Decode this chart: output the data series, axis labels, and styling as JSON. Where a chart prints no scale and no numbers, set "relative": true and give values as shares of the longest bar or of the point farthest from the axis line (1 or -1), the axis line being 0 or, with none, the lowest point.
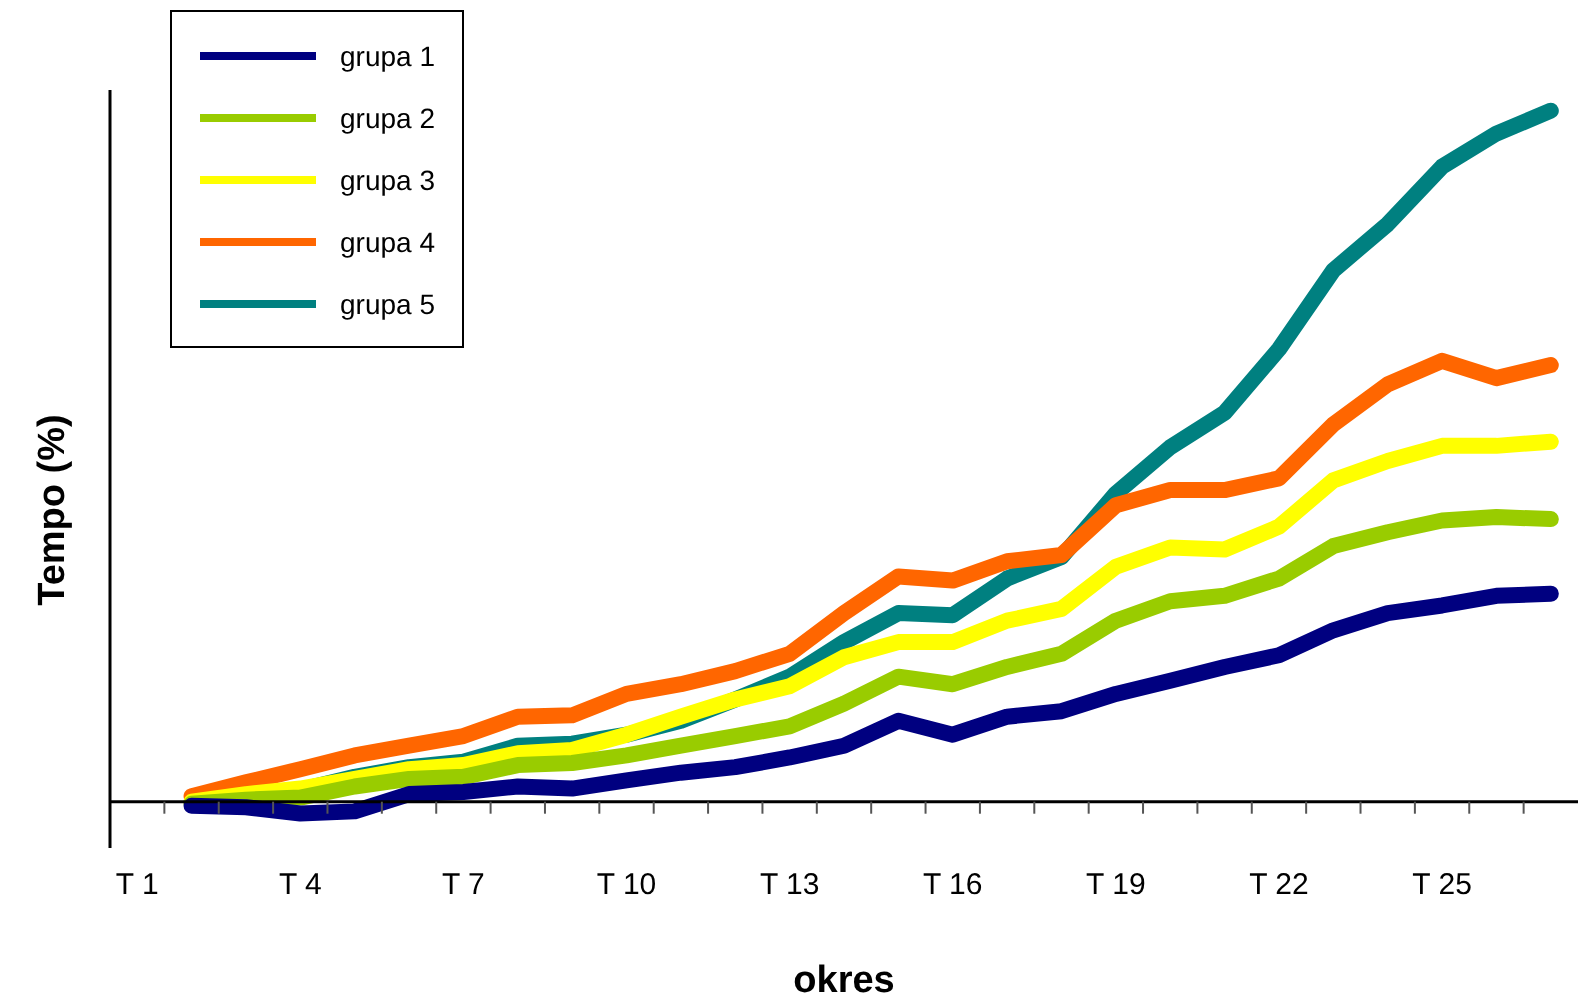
{
  "chart_data": {
    "type": "line",
    "xlabel": "okres",
    "ylabel": "Tempo (%)",
    "relative": true,
    "legend": "top left",
    "marker": "none",
    "line_style": "solid",
    "grid": false,
    "categories": [
      "T 1",
      null,
      null,
      "T 4",
      null,
      null,
      "T 7",
      null,
      null,
      "T 10",
      null,
      null,
      "T 13",
      null,
      null,
      "T 16",
      null,
      null,
      "T 19",
      null,
      null,
      "T 22",
      null,
      null,
      "T 25",
      null,
      null
    ],
    "series": [
      {
        "name": "grupa 1",
        "color": "#000080",
        "values": [
          null,
          -0.006,
          -0.008,
          -0.017,
          -0.014,
          0.011,
          0.014,
          0.022,
          0.019,
          0.031,
          0.042,
          0.05,
          0.064,
          0.081,
          0.117,
          0.097,
          0.123,
          0.131,
          0.156,
          0.175,
          0.195,
          0.212,
          0.248,
          0.273,
          0.284,
          0.298,
          0.301
        ]
      },
      {
        "name": "grupa 2",
        "color": "#99cc00",
        "values": [
          null,
          -0.003,
          0.003,
          0.006,
          0.022,
          0.033,
          0.036,
          0.053,
          0.056,
          0.067,
          0.081,
          0.095,
          0.109,
          0.142,
          0.181,
          0.17,
          0.195,
          0.214,
          0.262,
          0.29,
          0.298,
          0.323,
          0.37,
          0.39,
          0.407,
          0.412,
          0.409
        ]
      },
      {
        "name": "grupa 3",
        "color": "#ffff00",
        "values": [
          null,
          0,
          0.011,
          0.019,
          0.033,
          0.047,
          0.053,
          0.07,
          0.075,
          0.097,
          0.123,
          0.148,
          0.167,
          0.209,
          0.231,
          0.231,
          0.262,
          0.279,
          0.34,
          0.368,
          0.365,
          0.398,
          0.465,
          0.493,
          0.515,
          0.515,
          0.521
        ]
      },
      {
        "name": "grupa 4",
        "color": "#ff6600",
        "values": [
          null,
          0.008,
          0.028,
          0.047,
          0.067,
          0.081,
          0.095,
          0.123,
          0.125,
          0.156,
          0.17,
          0.189,
          0.214,
          0.273,
          0.326,
          0.32,
          0.348,
          0.357,
          0.429,
          0.451,
          0.451,
          0.468,
          0.546,
          0.604,
          0.638,
          0.613,
          0.632
        ]
      },
      {
        "name": "grupa 5",
        "color": "#008080",
        "values": [
          null,
          0,
          0.011,
          0.017,
          0.036,
          0.05,
          0.058,
          0.081,
          0.084,
          0.097,
          0.117,
          0.148,
          0.181,
          0.231,
          0.273,
          0.27,
          0.323,
          0.354,
          0.446,
          0.513,
          0.563,
          0.655,
          0.769,
          0.836,
          0.919,
          0.967,
          1
        ]
      }
    ]
  }
}
